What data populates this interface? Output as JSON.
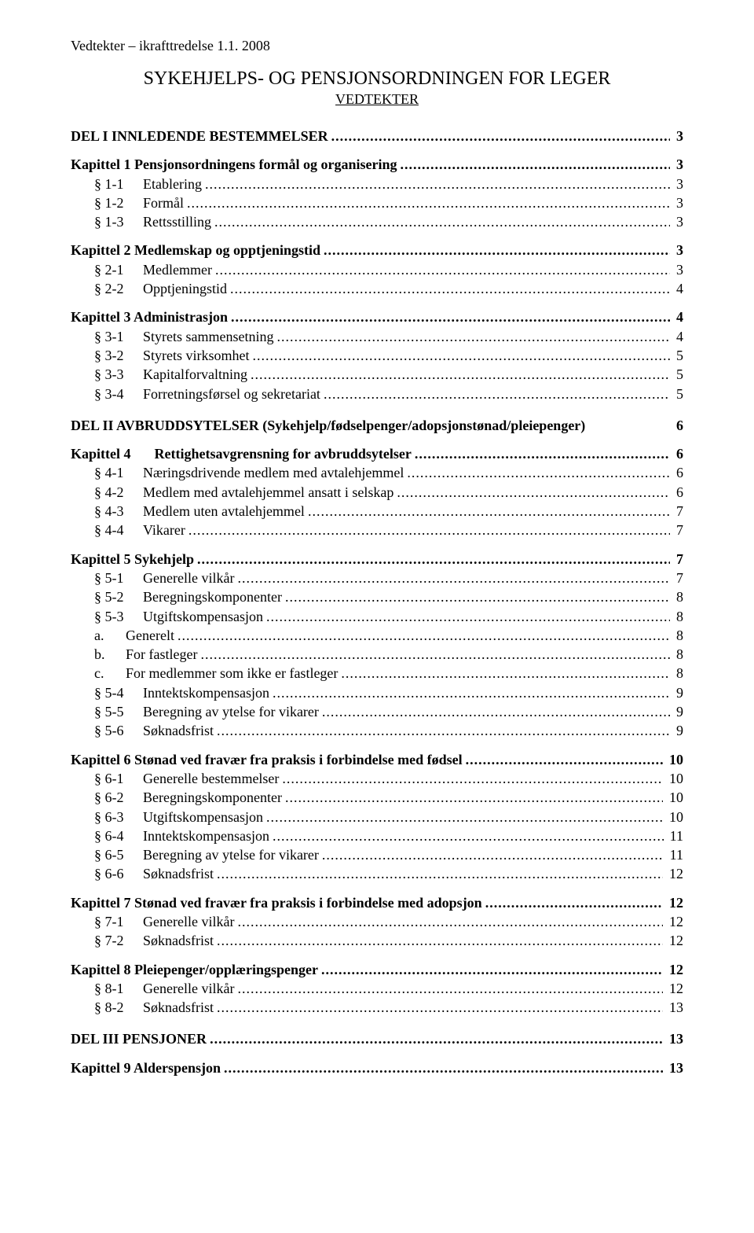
{
  "header_note": "Vedtekter – ikrafttredelse 1.1. 2008",
  "main_title": "SYKEHJELPS- OG PENSJONSORDNINGEN FOR LEGER",
  "sub_title": "VEDTEKTER",
  "toc": [
    {
      "level": "lvl1",
      "label": "DEL I  INNLEDENDE BESTEMMELSER",
      "page": "3"
    },
    {
      "level": "lvl2",
      "label": "Kapittel 1  Pensjonsordningens formål og organisering",
      "page": "3"
    },
    {
      "level": "lvl3",
      "code": "§ 1-1",
      "label": "Etablering",
      "page": "3"
    },
    {
      "level": "lvl3",
      "code": "§ 1-2",
      "label": "Formål",
      "page": "3"
    },
    {
      "level": "lvl3",
      "code": "§ 1-3",
      "label": "Rettsstilling",
      "page": "3"
    },
    {
      "level": "lvl2",
      "label": "Kapittel 2  Medlemskap og opptjeningstid",
      "page": "3"
    },
    {
      "level": "lvl3",
      "code": "§ 2-1",
      "label": "Medlemmer",
      "page": "3"
    },
    {
      "level": "lvl3",
      "code": "§ 2-2",
      "label": "Opptjeningstid",
      "page": "4"
    },
    {
      "level": "lvl2",
      "label": "Kapittel 3  Administrasjon",
      "page": "4"
    },
    {
      "level": "lvl3",
      "code": "§ 3-1",
      "label": "Styrets sammensetning",
      "page": "4"
    },
    {
      "level": "lvl3",
      "code": "§ 3-2",
      "label": "Styrets virksomhet",
      "page": "5"
    },
    {
      "level": "lvl3",
      "code": "§ 3-3",
      "label": "Kapitalforvaltning",
      "page": "5"
    },
    {
      "level": "lvl3",
      "code": "§ 3-4",
      "label": "Forretningsførsel og sekretariat",
      "page": "5"
    },
    {
      "level": "lvl1",
      "label": "DEL II  AVBRUDDSYTELSER (Sykehjelp/fødselpenger/adopsjonstønad/pleiepenger)",
      "page": "6",
      "nodots": true
    },
    {
      "level": "lvl2inline",
      "chapter": "Kapittel 4",
      "label": "Rettighetsavgrensning for avbruddsytelser",
      "page": "6"
    },
    {
      "level": "lvl3",
      "code": "§ 4-1",
      "label": "Næringsdrivende medlem med avtalehjemmel",
      "page": "6"
    },
    {
      "level": "lvl3",
      "code": "§ 4-2",
      "label": "Medlem med avtalehjemmel ansatt i selskap",
      "page": "6"
    },
    {
      "level": "lvl3",
      "code": "§ 4-3",
      "label": "Medlem uten avtalehjemmel",
      "page": "7"
    },
    {
      "level": "lvl3",
      "code": "§ 4-4",
      "label": "Vikarer",
      "page": "7"
    },
    {
      "level": "lvl2",
      "label": "Kapittel 5  Sykehjelp",
      "page": "7"
    },
    {
      "level": "lvl3",
      "code": "§ 5-1",
      "label": "Generelle vilkår",
      "page": "7"
    },
    {
      "level": "lvl3",
      "code": "§ 5-2",
      "label": "Beregningskomponenter",
      "page": "8"
    },
    {
      "level": "lvl3",
      "code": "§ 5-3",
      "label": "Utgiftskompensasjon",
      "page": "8"
    },
    {
      "level": "lvl4",
      "code": "a.",
      "label": "Generelt",
      "page": "8"
    },
    {
      "level": "lvl4",
      "code": "b.",
      "label": "For fastleger",
      "page": "8"
    },
    {
      "level": "lvl4",
      "code": "c.",
      "label": "For medlemmer som ikke er fastleger",
      "page": "8"
    },
    {
      "level": "lvl3",
      "code": "§ 5-4",
      "label": "Inntektskompensasjon",
      "page": "9"
    },
    {
      "level": "lvl3",
      "code": "§ 5-5",
      "label": "Beregning av ytelse for vikarer",
      "page": "9"
    },
    {
      "level": "lvl3",
      "code": "§ 5-6",
      "label": "Søknadsfrist",
      "page": "9"
    },
    {
      "level": "lvl2",
      "label": "Kapittel 6  Stønad ved fravær fra praksis i forbindelse med fødsel",
      "page": "10"
    },
    {
      "level": "lvl3",
      "code": "§ 6-1",
      "label": "Generelle bestemmelser",
      "page": "10"
    },
    {
      "level": "lvl3",
      "code": "§ 6-2",
      "label": "Beregningskomponenter",
      "page": "10"
    },
    {
      "level": "lvl3",
      "code": "§ 6-3",
      "label": "Utgiftskompensasjon",
      "page": "10"
    },
    {
      "level": "lvl3",
      "code": "§ 6-4",
      "label": "Inntektskompensasjon",
      "page": "11"
    },
    {
      "level": "lvl3",
      "code": "§ 6-5",
      "label": "Beregning av ytelse for vikarer",
      "page": "11"
    },
    {
      "level": "lvl3",
      "code": "§ 6-6",
      "label": "Søknadsfrist",
      "page": "12"
    },
    {
      "level": "lvl2",
      "label": "Kapittel 7  Stønad ved fravær fra praksis i forbindelse med adopsjon",
      "page": "12"
    },
    {
      "level": "lvl3",
      "code": "§ 7-1",
      "label": "Generelle vilkår",
      "page": "12"
    },
    {
      "level": "lvl3",
      "code": "§ 7-2",
      "label": "Søknadsfrist",
      "page": "12"
    },
    {
      "level": "lvl2",
      "label": "Kapittel 8  Pleiepenger/opplæringspenger",
      "page": "12"
    },
    {
      "level": "lvl3",
      "code": "§ 8-1",
      "label": "Generelle vilkår",
      "page": "12"
    },
    {
      "level": "lvl3",
      "code": "§ 8-2",
      "label": "Søknadsfrist",
      "page": "13"
    },
    {
      "level": "lvl1",
      "label": "DEL III  PENSJONER",
      "page": "13"
    },
    {
      "level": "lvl2",
      "label": "Kapittel 9  Alderspensjon",
      "page": "13"
    }
  ]
}
